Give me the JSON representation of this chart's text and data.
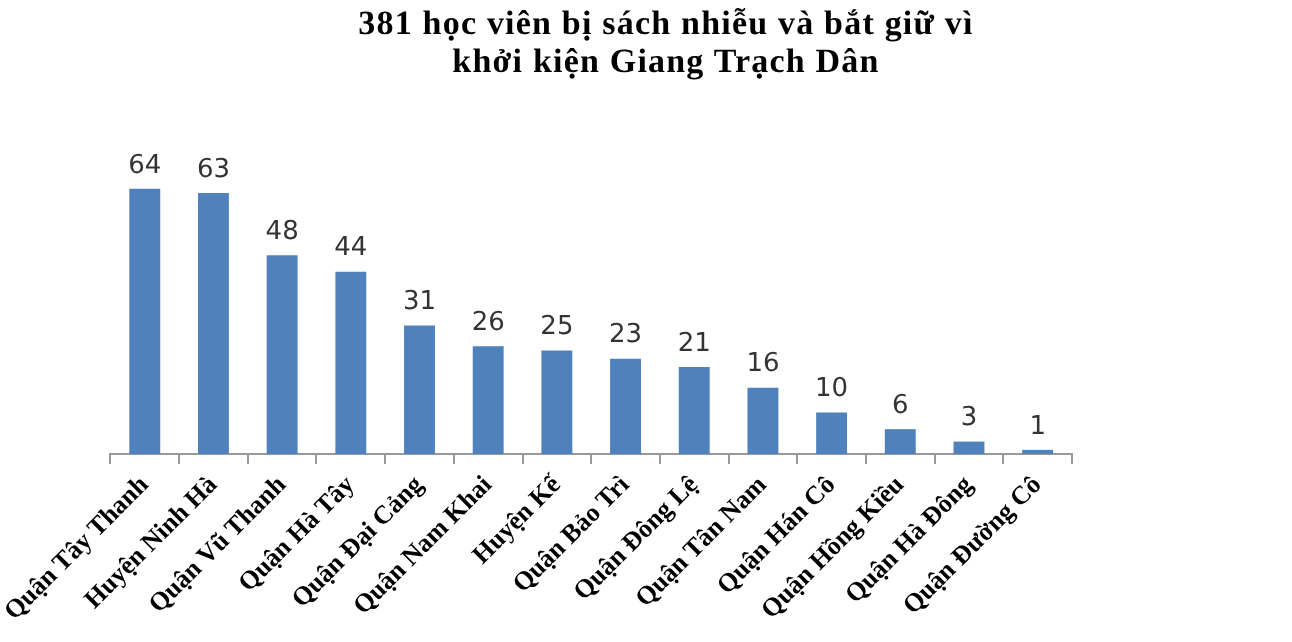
{
  "chart_data": {
    "type": "bar",
    "title": "381 học viên bị sách nhiễu và bắt giữ vì khởi kiện Giang Trạch Dân",
    "categories": [
      "Quận Tây Thanh",
      "Huyện Ninh Hà",
      "Quận Vũ Thanh",
      "Quận Hà Tây",
      "Quận Đại Cảng",
      "Quận Nam Khai",
      "Huyện Kế",
      "Quận Bảo Trì",
      "Quận Đông Lệ",
      "Quận Tân Nam",
      "Quận Hán Cô",
      "Quận Hồng Kiều",
      "Quận Hà Đông",
      "Quận Đường Cô"
    ],
    "values": [
      64,
      63,
      48,
      44,
      31,
      26,
      25,
      23,
      21,
      16,
      10,
      6,
      3,
      1
    ],
    "color": "#4f81bd",
    "data_labels": true,
    "grid": false,
    "legend": false
  }
}
